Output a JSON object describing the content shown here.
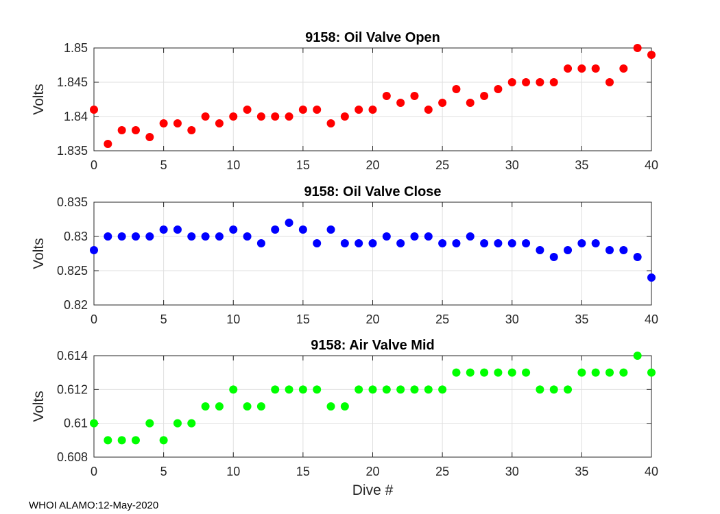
{
  "footer": "WHOI ALAMO:12-May-2020",
  "chart_data": [
    {
      "type": "scatter",
      "title": "9158: Oil Valve Open",
      "xlabel": "",
      "ylabel": "Volts",
      "color": "#ff0000",
      "xlim": [
        0,
        40
      ],
      "ylim": [
        1.835,
        1.85
      ],
      "xticks": [
        0,
        5,
        10,
        15,
        20,
        25,
        30,
        35,
        40
      ],
      "yticks": [
        1.835,
        1.84,
        1.845,
        1.85
      ],
      "ytick_labels": [
        "1.835",
        "1.84",
        "1.845",
        "1.85"
      ],
      "grid": true,
      "x": [
        0,
        1,
        2,
        3,
        4,
        5,
        6,
        7,
        8,
        9,
        10,
        11,
        12,
        13,
        14,
        15,
        16,
        17,
        18,
        19,
        20,
        21,
        22,
        23,
        24,
        25,
        26,
        27,
        28,
        29,
        30,
        31,
        32,
        33,
        34,
        35,
        36,
        37,
        38,
        39,
        40
      ],
      "y": [
        1.841,
        1.836,
        1.838,
        1.838,
        1.837,
        1.839,
        1.839,
        1.838,
        1.84,
        1.839,
        1.84,
        1.841,
        1.84,
        1.84,
        1.84,
        1.841,
        1.841,
        1.839,
        1.84,
        1.841,
        1.841,
        1.843,
        1.842,
        1.843,
        1.841,
        1.842,
        1.844,
        1.842,
        1.843,
        1.844,
        1.845,
        1.845,
        1.845,
        1.845,
        1.847,
        1.847,
        1.847,
        1.845,
        1.847,
        1.85,
        1.849
      ]
    },
    {
      "type": "scatter",
      "title": "9158: Oil Valve Close",
      "xlabel": "",
      "ylabel": "Volts",
      "color": "#0000ff",
      "xlim": [
        0,
        40
      ],
      "ylim": [
        0.82,
        0.835
      ],
      "xticks": [
        0,
        5,
        10,
        15,
        20,
        25,
        30,
        35,
        40
      ],
      "yticks": [
        0.82,
        0.825,
        0.83,
        0.835
      ],
      "ytick_labels": [
        "0.82",
        "0.825",
        "0.83",
        "0.835"
      ],
      "grid": true,
      "x": [
        0,
        1,
        2,
        3,
        4,
        5,
        6,
        7,
        8,
        9,
        10,
        11,
        12,
        13,
        14,
        15,
        16,
        17,
        18,
        19,
        20,
        21,
        22,
        23,
        24,
        25,
        26,
        27,
        28,
        29,
        30,
        31,
        32,
        33,
        34,
        35,
        36,
        37,
        38,
        39,
        40
      ],
      "y": [
        0.828,
        0.83,
        0.83,
        0.83,
        0.83,
        0.831,
        0.831,
        0.83,
        0.83,
        0.83,
        0.831,
        0.83,
        0.829,
        0.831,
        0.832,
        0.831,
        0.829,
        0.831,
        0.829,
        0.829,
        0.829,
        0.83,
        0.829,
        0.83,
        0.83,
        0.829,
        0.829,
        0.83,
        0.829,
        0.829,
        0.829,
        0.829,
        0.828,
        0.827,
        0.828,
        0.829,
        0.829,
        0.828,
        0.828,
        0.827,
        0.824
      ]
    },
    {
      "type": "scatter",
      "title": "9158: Air Valve Mid",
      "xlabel": "Dive #",
      "ylabel": "Volts",
      "color": "#00ff00",
      "xlim": [
        0,
        40
      ],
      "ylim": [
        0.608,
        0.614
      ],
      "xticks": [
        0,
        5,
        10,
        15,
        20,
        25,
        30,
        35,
        40
      ],
      "yticks": [
        0.608,
        0.61,
        0.612,
        0.614
      ],
      "ytick_labels": [
        "0.608",
        "0.61",
        "0.612",
        "0.614"
      ],
      "grid": true,
      "x": [
        0,
        1,
        2,
        3,
        4,
        5,
        6,
        7,
        8,
        9,
        10,
        11,
        12,
        13,
        14,
        15,
        16,
        17,
        18,
        19,
        20,
        21,
        22,
        23,
        24,
        25,
        26,
        27,
        28,
        29,
        30,
        31,
        32,
        33,
        34,
        35,
        36,
        37,
        38,
        39,
        40
      ],
      "y": [
        0.61,
        0.609,
        0.609,
        0.609,
        0.61,
        0.609,
        0.61,
        0.61,
        0.611,
        0.611,
        0.612,
        0.611,
        0.611,
        0.612,
        0.612,
        0.612,
        0.612,
        0.611,
        0.611,
        0.612,
        0.612,
        0.612,
        0.612,
        0.612,
        0.612,
        0.612,
        0.613,
        0.613,
        0.613,
        0.613,
        0.613,
        0.613,
        0.612,
        0.612,
        0.612,
        0.613,
        0.613,
        0.613,
        0.613,
        0.614,
        0.613
      ]
    }
  ]
}
